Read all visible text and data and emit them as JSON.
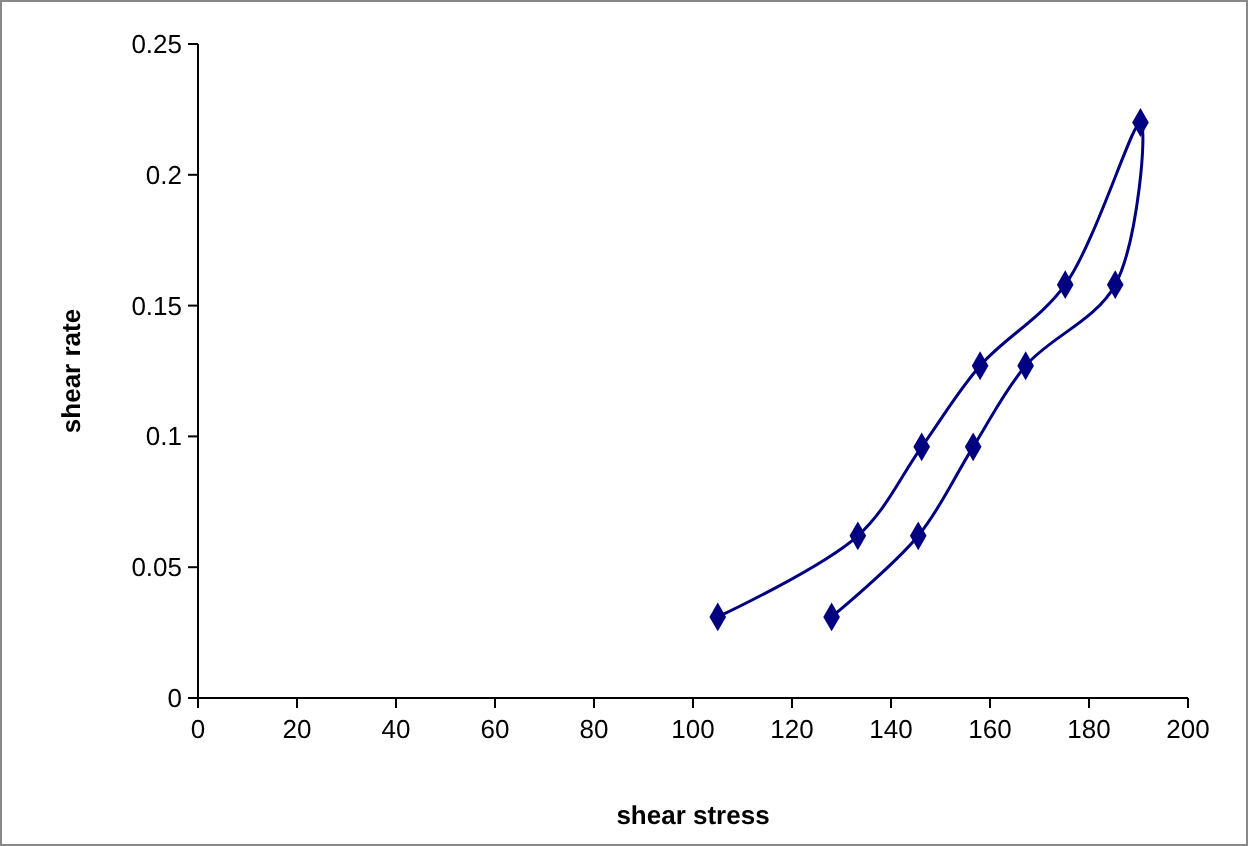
{
  "chart_data": {
    "type": "line",
    "xlabel": "shear stress",
    "ylabel": "shear rate",
    "xlim": [
      0,
      200
    ],
    "xticks": [
      0,
      20,
      40,
      60,
      80,
      100,
      120,
      140,
      160,
      180,
      200
    ],
    "ylim": [
      0,
      0.25
    ],
    "yticks": [
      0,
      0.05,
      0.1,
      0.15,
      0.2,
      0.25
    ],
    "series": [
      {
        "color": "#000080",
        "x": [
          105,
          133.3,
          146.2,
          158,
          175.2,
          190.4,
          185.3,
          167.2,
          156.6,
          145.5,
          128
        ],
        "values": [
          0.031,
          0.062,
          0.096,
          0.127,
          0.158,
          0.22,
          0.158,
          0.127,
          0.096,
          0.062,
          0.031
        ]
      }
    ],
    "marker": "diamond",
    "line_style": "solid",
    "grid": false
  }
}
